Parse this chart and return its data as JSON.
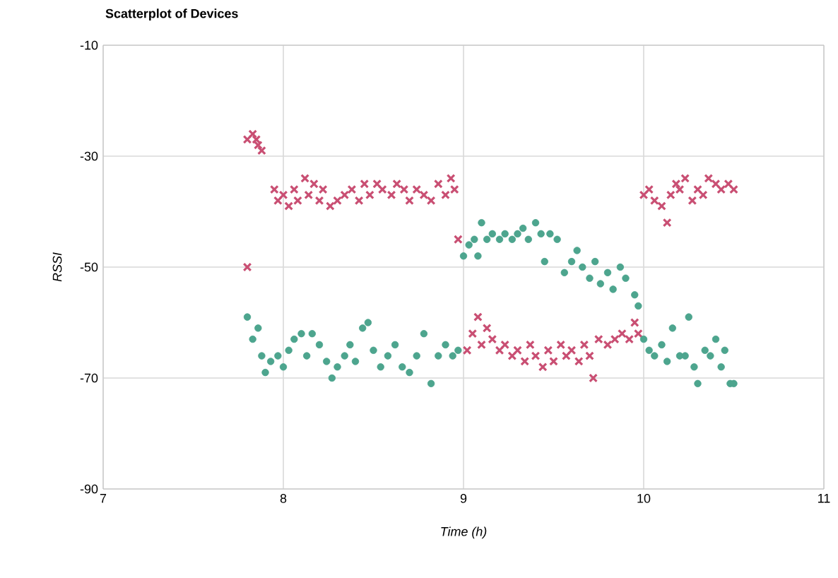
{
  "chart_data": {
    "type": "scatter",
    "title": "Scatterplot of Devices",
    "xlabel": "Time (h)",
    "ylabel": "RSSI",
    "xlim": [
      7,
      11
    ],
    "ylim": [
      -90,
      -10
    ],
    "xticks": [
      7,
      8,
      9,
      10,
      11
    ],
    "yticks": [
      -90,
      -70,
      -50,
      -30,
      -10
    ],
    "grid": true,
    "series": [
      {
        "color": "#c94f73",
        "marker": "cross",
        "x": [
          7.8,
          7.8,
          7.83,
          7.85,
          7.86,
          7.88,
          7.95,
          7.97,
          8.0,
          8.03,
          8.06,
          8.08,
          8.12,
          8.14,
          8.17,
          8.2,
          8.22,
          8.26,
          8.3,
          8.34,
          8.38,
          8.42,
          8.45,
          8.48,
          8.52,
          8.55,
          8.6,
          8.63,
          8.67,
          8.7,
          8.74,
          8.78,
          8.82,
          8.86,
          8.9,
          8.93,
          8.95,
          8.97,
          9.02,
          9.05,
          9.08,
          9.1,
          9.13,
          9.16,
          9.2,
          9.23,
          9.27,
          9.3,
          9.34,
          9.37,
          9.4,
          9.44,
          9.47,
          9.5,
          9.54,
          9.57,
          9.6,
          9.64,
          9.67,
          9.7,
          9.72,
          9.75,
          9.8,
          9.84,
          9.88,
          9.92,
          9.95,
          9.97,
          10.0,
          10.03,
          10.06,
          10.1,
          10.13,
          10.15,
          10.18,
          10.2,
          10.23,
          10.27,
          10.3,
          10.33,
          10.36,
          10.4,
          10.43,
          10.47,
          10.5
        ],
        "values": [
          -50,
          -27,
          -26,
          -27,
          -28,
          -29,
          -36,
          -38,
          -37,
          -39,
          -36,
          -38,
          -34,
          -37,
          -35,
          -38,
          -36,
          -39,
          -38,
          -37,
          -36,
          -38,
          -35,
          -37,
          -35,
          -36,
          -37,
          -35,
          -36,
          -38,
          -36,
          -37,
          -38,
          -35,
          -37,
          -34,
          -36,
          -45,
          -65,
          -62,
          -59,
          -64,
          -61,
          -63,
          -65,
          -64,
          -66,
          -65,
          -67,
          -64,
          -66,
          -68,
          -65,
          -67,
          -64,
          -66,
          -65,
          -67,
          -64,
          -66,
          -70,
          -63,
          -64,
          -63,
          -62,
          -63,
          -60,
          -62,
          -37,
          -36,
          -38,
          -39,
          -42,
          -37,
          -35,
          -36,
          -34,
          -38,
          -36,
          -37,
          -34,
          -35,
          -36,
          -35,
          -36
        ]
      },
      {
        "color": "#4da58e",
        "marker": "circle",
        "x": [
          7.8,
          7.83,
          7.86,
          7.88,
          7.9,
          7.93,
          7.97,
          8.0,
          8.03,
          8.06,
          8.1,
          8.13,
          8.16,
          8.2,
          8.24,
          8.27,
          8.3,
          8.34,
          8.37,
          8.4,
          8.44,
          8.47,
          8.5,
          8.54,
          8.58,
          8.62,
          8.66,
          8.7,
          8.74,
          8.78,
          8.82,
          8.86,
          8.9,
          8.94,
          8.97,
          9.0,
          9.03,
          9.06,
          9.08,
          9.1,
          9.13,
          9.16,
          9.2,
          9.23,
          9.27,
          9.3,
          9.33,
          9.36,
          9.4,
          9.43,
          9.45,
          9.48,
          9.52,
          9.56,
          9.6,
          9.63,
          9.66,
          9.7,
          9.73,
          9.76,
          9.8,
          9.83,
          9.87,
          9.9,
          9.95,
          9.97,
          10.0,
          10.03,
          10.06,
          10.1,
          10.13,
          10.16,
          10.2,
          10.23,
          10.25,
          10.28,
          10.3,
          10.34,
          10.37,
          10.4,
          10.43,
          10.45,
          10.48,
          10.5
        ],
        "values": [
          -59,
          -63,
          -61,
          -66,
          -69,
          -67,
          -66,
          -68,
          -65,
          -63,
          -62,
          -66,
          -62,
          -64,
          -67,
          -70,
          -68,
          -66,
          -64,
          -67,
          -61,
          -60,
          -65,
          -68,
          -66,
          -64,
          -68,
          -69,
          -66,
          -62,
          -71,
          -66,
          -64,
          -66,
          -65,
          -48,
          -46,
          -45,
          -48,
          -42,
          -45,
          -44,
          -45,
          -44,
          -45,
          -44,
          -43,
          -45,
          -42,
          -44,
          -49,
          -44,
          -45,
          -51,
          -49,
          -47,
          -50,
          -52,
          -49,
          -53,
          -51,
          -54,
          -50,
          -52,
          -55,
          -57,
          -63,
          -65,
          -66,
          -64,
          -67,
          -61,
          -66,
          -66,
          -59,
          -68,
          -71,
          -65,
          -66,
          -63,
          -68,
          -65,
          -71,
          -71
        ]
      }
    ]
  }
}
